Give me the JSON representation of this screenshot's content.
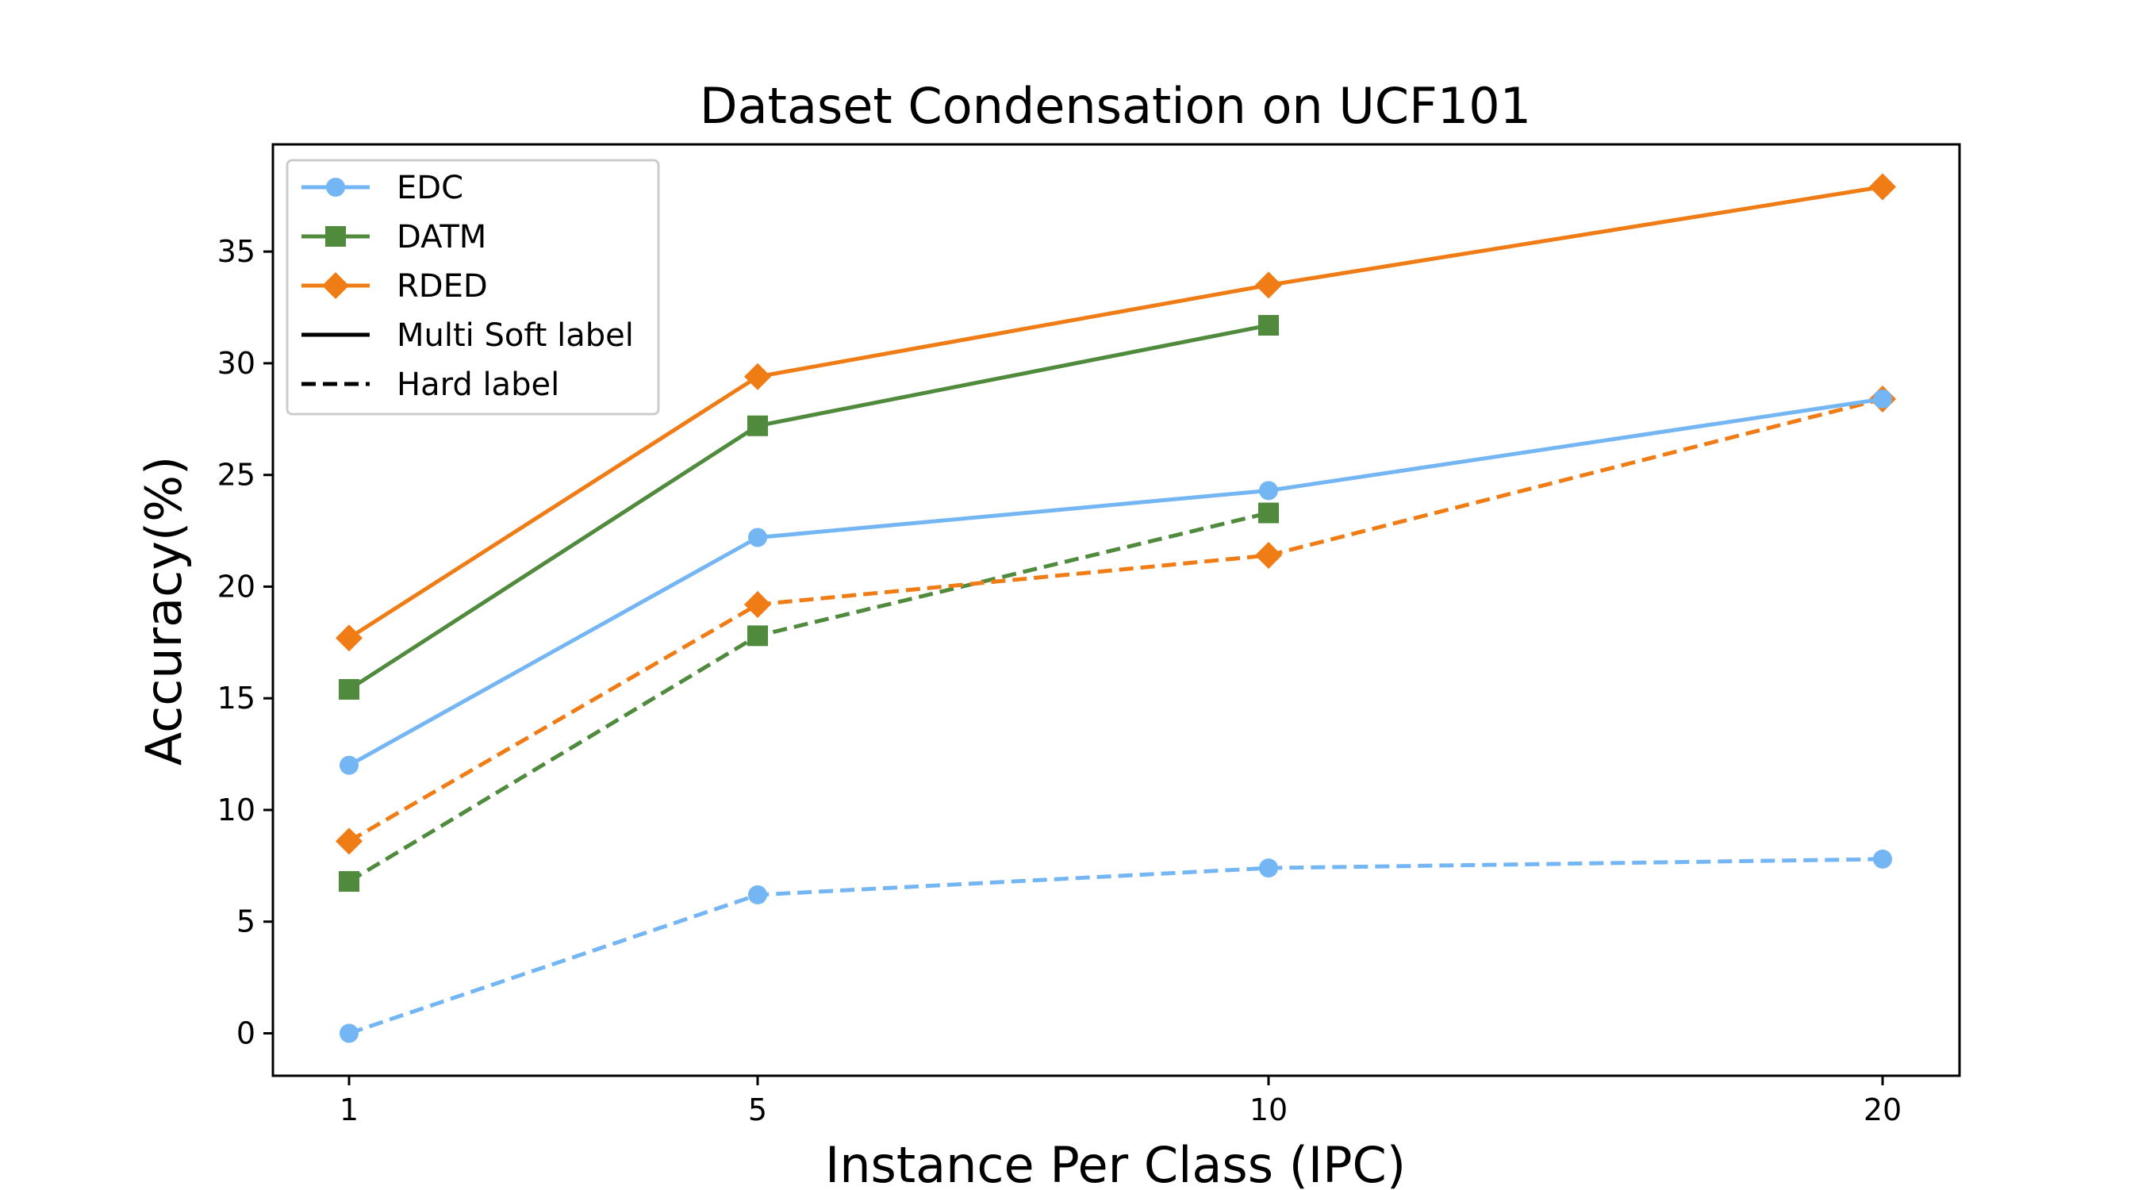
{
  "chart_data": {
    "type": "line",
    "title": "Dataset Condensation on UCF101",
    "xlabel": "Instance Per Class (IPC)",
    "ylabel": "Accuracy(%)",
    "categories": [
      "1",
      "5",
      "10",
      "20"
    ],
    "x": [
      1,
      5,
      10,
      20
    ],
    "yticks": [
      0,
      5,
      10,
      15,
      20,
      25,
      30,
      35
    ],
    "ylim": [
      -1.9,
      39.8
    ],
    "legend_position": "upper-left",
    "colors": {
      "EDC": "#74b6f4",
      "DATM": "#4f8a3d",
      "RDED": "#f07c16"
    },
    "series": [
      {
        "name": "EDC",
        "label_type": "Multi Soft label",
        "marker": "circle",
        "linestyle": "solid",
        "values": [
          12.0,
          22.2,
          24.3,
          28.4
        ]
      },
      {
        "name": "DATM",
        "label_type": "Multi Soft label",
        "marker": "square",
        "linestyle": "solid",
        "values": [
          15.4,
          27.2,
          31.7,
          null
        ]
      },
      {
        "name": "RDED",
        "label_type": "Multi Soft label",
        "marker": "diamond",
        "linestyle": "solid",
        "values": [
          17.7,
          29.4,
          33.5,
          37.9
        ]
      },
      {
        "name": "EDC",
        "label_type": "Hard label",
        "marker": "circle",
        "linestyle": "dashed",
        "values": [
          0.0,
          6.2,
          7.4,
          7.8
        ]
      },
      {
        "name": "DATM",
        "label_type": "Hard label",
        "marker": "square",
        "linestyle": "dashed",
        "values": [
          6.8,
          17.8,
          23.3,
          null
        ]
      },
      {
        "name": "RDED",
        "label_type": "Hard label",
        "marker": "diamond",
        "linestyle": "dashed",
        "values": [
          8.6,
          19.2,
          21.4,
          28.4
        ]
      }
    ],
    "legend": [
      {
        "label": "EDC",
        "color": "#74b6f4",
        "marker": "circle",
        "linestyle": "solid"
      },
      {
        "label": "DATM",
        "color": "#4f8a3d",
        "marker": "square",
        "linestyle": "solid"
      },
      {
        "label": "RDED",
        "color": "#f07c16",
        "marker": "diamond",
        "linestyle": "solid"
      },
      {
        "label": "Multi Soft label",
        "color": "#000000",
        "marker": "none",
        "linestyle": "solid"
      },
      {
        "label": "Hard label",
        "color": "#000000",
        "marker": "none",
        "linestyle": "dashed"
      }
    ]
  }
}
